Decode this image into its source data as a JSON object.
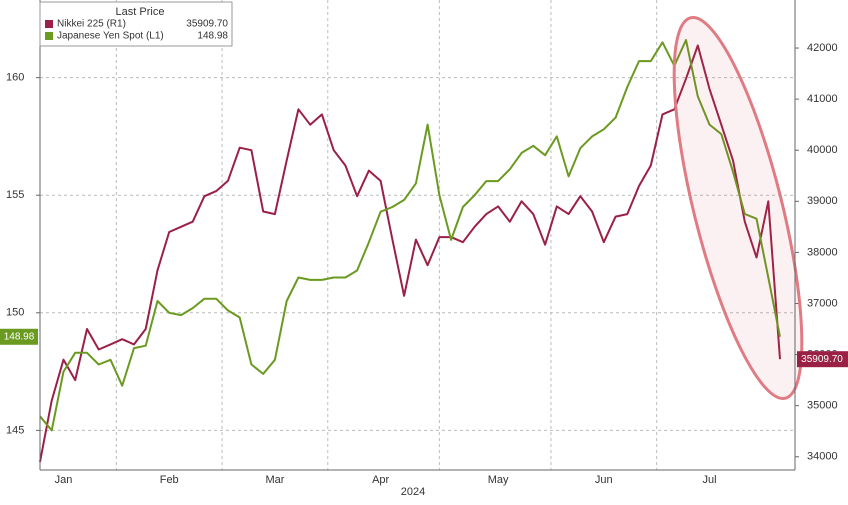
{
  "chart_data": {
    "type": "line",
    "legend_title": "Last Price",
    "x_label": "2024",
    "categories": [
      null,
      null,
      "Jan",
      null,
      null,
      null,
      null,
      null,
      null,
      null,
      null,
      "Feb",
      null,
      null,
      null,
      null,
      null,
      null,
      null,
      null,
      "Mar",
      null,
      null,
      null,
      null,
      null,
      null,
      null,
      null,
      "Apr",
      null,
      null,
      null,
      null,
      null,
      null,
      null,
      null,
      null,
      "May",
      null,
      null,
      null,
      null,
      null,
      null,
      null,
      null,
      "Jun",
      null,
      null,
      null,
      null,
      null,
      null,
      null,
      null,
      "Jul",
      null,
      null,
      null,
      null,
      null,
      null
    ],
    "ylim": [
      143.4,
      163.3
    ],
    "yticks": [
      145,
      150,
      155,
      160
    ],
    "y2lim": [
      33780,
      42940
    ],
    "y2ticks": [
      34000,
      35000,
      36000,
      37000,
      38000,
      39000,
      40000,
      41000,
      42000
    ],
    "grid": true,
    "legend": "upper left",
    "series": [
      {
        "name": "Nikkei 225 (R1)",
        "color": "#9b2045",
        "axis": "y2",
        "last_label": "35909.70",
        "values": [
          33900,
          35100,
          35900,
          35500,
          36500,
          36100,
          36200,
          36300,
          36200,
          36500,
          37650,
          38400,
          38500,
          38600,
          39100,
          39200,
          39400,
          40050,
          40000,
          38800,
          38750,
          39800,
          40800,
          40500,
          40700,
          40000,
          39700,
          39100,
          39600,
          39400,
          38250,
          37150,
          38250,
          37750,
          38300,
          38300,
          38200,
          38500,
          38750,
          38900,
          38600,
          39000,
          38750,
          38150,
          38900,
          38750,
          39100,
          38800,
          38200,
          38700,
          38750,
          39300,
          39700,
          40700,
          40800,
          41400,
          42050,
          41200,
          40500,
          39800,
          38600,
          37900,
          39000,
          35909.7
        ]
      },
      {
        "name": "Japanese Yen Spot (L1)",
        "color": "#6a9a1f",
        "axis": "y",
        "last_label": "148.98",
        "values": [
          145.6,
          145.0,
          147.5,
          148.3,
          148.3,
          147.8,
          148.0,
          146.9,
          148.5,
          148.6,
          150.5,
          150.0,
          149.9,
          150.2,
          150.6,
          150.6,
          150.1,
          149.8,
          147.8,
          147.4,
          148.0,
          150.5,
          151.5,
          151.4,
          151.4,
          151.5,
          151.5,
          151.8,
          153.0,
          154.3,
          154.5,
          154.8,
          155.5,
          158.0,
          155.0,
          153.1,
          154.5,
          155.0,
          155.6,
          155.6,
          156.1,
          156.8,
          157.1,
          156.7,
          157.5,
          155.8,
          157.0,
          157.5,
          157.8,
          158.3,
          159.6,
          160.7,
          160.7,
          161.5,
          160.5,
          161.6,
          159.2,
          158.0,
          157.6,
          156.0,
          154.2,
          154.0,
          151.5,
          148.98
        ]
      }
    ]
  }
}
